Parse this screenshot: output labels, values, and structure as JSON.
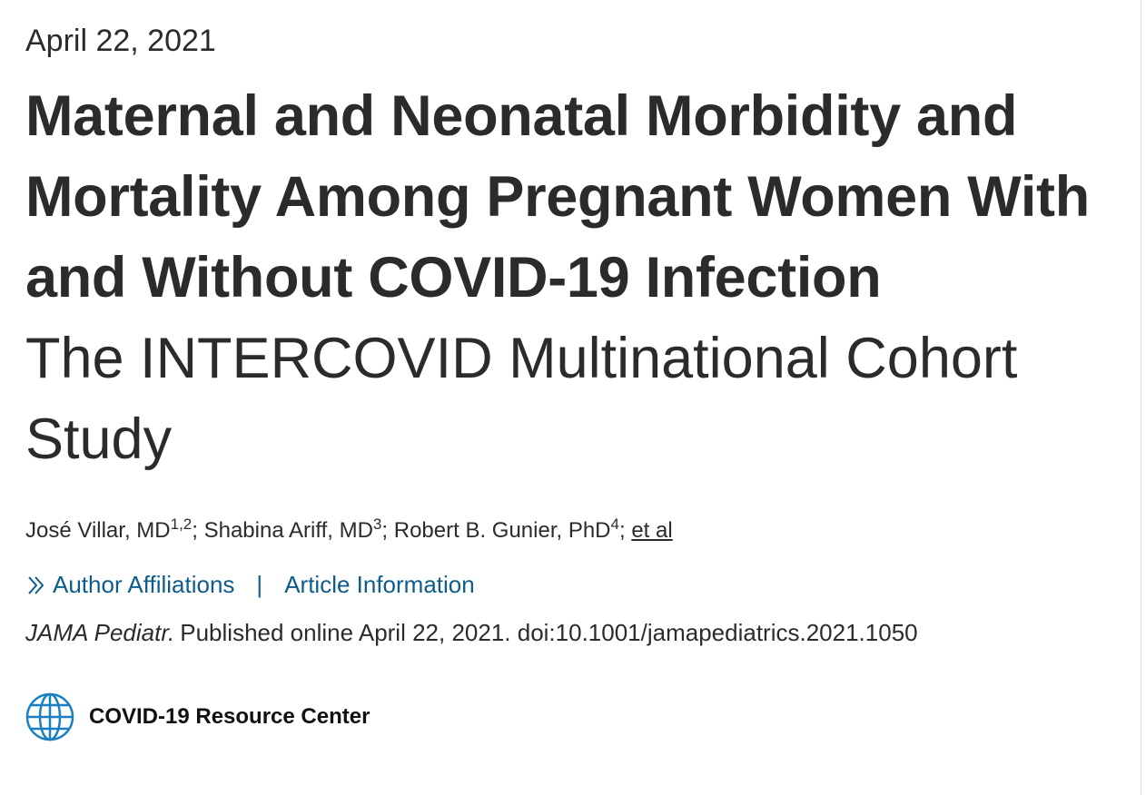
{
  "date": "April 22, 2021",
  "title": "Maternal and Neonatal Morbidity and Mortality Among Pregnant Women With and Without COVID-19 Infection",
  "subtitle": "The INTERCOVID Multinational Cohort Study",
  "authors_line": {
    "authors": [
      {
        "name": "José Villar, MD",
        "affiliations": "1,2"
      },
      {
        "name": "Shabina Ariff, MD",
        "affiliations": "3"
      },
      {
        "name": "Robert B. Gunier, PhD",
        "affiliations": "4"
      }
    ],
    "separator": ";",
    "et_al": "et al"
  },
  "links": {
    "items": [
      "Author Affiliations",
      "Article Information"
    ],
    "separator": "|"
  },
  "citation": {
    "journal": "JAMA Pediatr.",
    "text": "Published online April 22, 2021. doi:10.1001/jamapediatrics.2021.1050"
  },
  "resource_link": "COVID-19 Resource Center"
}
